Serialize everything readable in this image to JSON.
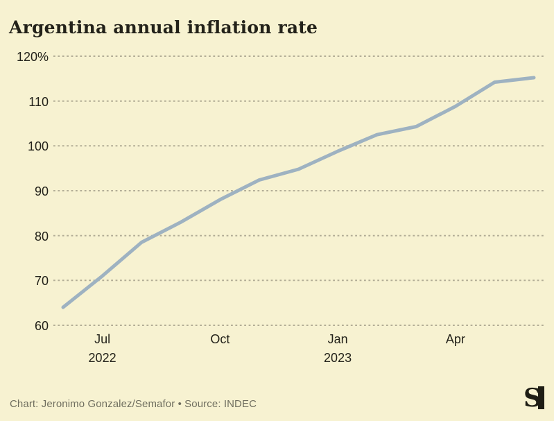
{
  "page": {
    "background": "#f7f2d1"
  },
  "header": {
    "title": "Argentina annual inflation rate"
  },
  "footer": {
    "credit": "Chart: Jeronimo Gonzalez/Semafor • Source: INDEC"
  },
  "logo": {
    "letter": "S",
    "color": "#1e1d14"
  },
  "chart_data": {
    "type": "line",
    "title": "Argentina annual inflation rate",
    "x": [
      "Jun 2022",
      "Jul 2022",
      "Aug 2022",
      "Sep 2022",
      "Oct 2022",
      "Nov 2022",
      "Dec 2022",
      "Jan 2023",
      "Feb 2023",
      "Mar 2023",
      "Apr 2023",
      "May 2023",
      "Jun 2023"
    ],
    "series": [
      {
        "name": "Annual inflation rate (%)",
        "values": [
          64.0,
          71.0,
          78.5,
          83.0,
          88.0,
          92.4,
          94.8,
          98.8,
          102.5,
          104.3,
          108.8,
          114.2,
          115.2
        ]
      }
    ],
    "ylim": [
      60,
      120
    ],
    "xlabel": "",
    "ylabel": "Annual inflation rate (%)",
    "grid": true,
    "legend": false,
    "y_ticks": [
      {
        "value": 120,
        "label": "120%"
      },
      {
        "value": 110,
        "label": "110"
      },
      {
        "value": 100,
        "label": "100"
      },
      {
        "value": 90,
        "label": "90"
      },
      {
        "value": 80,
        "label": "80"
      },
      {
        "value": 70,
        "label": "70"
      },
      {
        "value": 60,
        "label": "60"
      }
    ],
    "x_ticks": [
      {
        "index": 1,
        "label": "Jul",
        "sublabel": "2022"
      },
      {
        "index": 4,
        "label": "Oct",
        "sublabel": ""
      },
      {
        "index": 7,
        "label": "Jan",
        "sublabel": "2023"
      },
      {
        "index": 10,
        "label": "Apr",
        "sublabel": ""
      }
    ],
    "line_color": "#9eb2c1",
    "grid_color": "#b2ad96"
  }
}
